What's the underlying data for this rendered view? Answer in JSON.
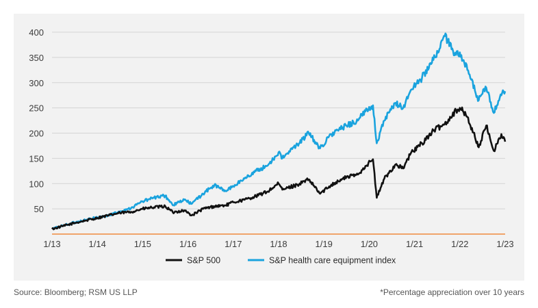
{
  "chart_data": {
    "type": "line",
    "title": "",
    "xlabel": "",
    "ylabel": "",
    "x_ticks": [
      "1/13",
      "1/14",
      "1/15",
      "1/16",
      "1/17",
      "1/18",
      "1/19",
      "1/20",
      "1/21",
      "1/22",
      "1/23"
    ],
    "y_ticks": [
      50,
      100,
      150,
      200,
      250,
      300,
      350,
      400
    ],
    "ylim": [
      0,
      400
    ],
    "xlim": [
      "2013-01",
      "2023-01"
    ],
    "grid": true,
    "legend_position": "bottom-center",
    "baseline_color": "#f08a3c",
    "series": [
      {
        "name": "S&P 500",
        "color": "#111111",
        "points": [
          [
            "2013-01",
            10
          ],
          [
            "2013-04",
            16
          ],
          [
            "2013-07",
            22
          ],
          [
            "2013-10",
            27
          ],
          [
            "2014-01",
            32
          ],
          [
            "2014-04",
            37
          ],
          [
            "2014-07",
            42
          ],
          [
            "2014-10",
            44
          ],
          [
            "2015-01",
            50
          ],
          [
            "2015-04",
            53
          ],
          [
            "2015-07",
            55
          ],
          [
            "2015-09",
            43
          ],
          [
            "2015-12",
            47
          ],
          [
            "2016-02",
            37
          ],
          [
            "2016-05",
            50
          ],
          [
            "2016-08",
            55
          ],
          [
            "2016-11",
            57
          ],
          [
            "2017-01",
            63
          ],
          [
            "2017-04",
            68
          ],
          [
            "2017-07",
            75
          ],
          [
            "2017-10",
            84
          ],
          [
            "2018-01",
            100
          ],
          [
            "2018-02",
            88
          ],
          [
            "2018-06",
            98
          ],
          [
            "2018-09",
            108
          ],
          [
            "2018-12",
            80
          ],
          [
            "2019-03",
            98
          ],
          [
            "2019-07",
            113
          ],
          [
            "2019-10",
            118
          ],
          [
            "2019-12",
            135
          ],
          [
            "2020-02",
            148
          ],
          [
            "2020-03",
            72
          ],
          [
            "2020-05",
            110
          ],
          [
            "2020-08",
            138
          ],
          [
            "2020-10",
            130
          ],
          [
            "2020-12",
            160
          ],
          [
            "2021-03",
            180
          ],
          [
            "2021-06",
            205
          ],
          [
            "2021-09",
            218
          ],
          [
            "2021-12",
            245
          ],
          [
            "2022-01",
            250
          ],
          [
            "2022-03",
            232
          ],
          [
            "2022-06",
            172
          ],
          [
            "2022-08",
            215
          ],
          [
            "2022-10",
            165
          ],
          [
            "2022-12",
            198
          ],
          [
            "2023-01",
            183
          ]
        ]
      },
      {
        "name": "S&P health care equipment index",
        "color": "#1aa3de",
        "points": [
          [
            "2013-01",
            10
          ],
          [
            "2013-04",
            17
          ],
          [
            "2013-07",
            23
          ],
          [
            "2013-10",
            28
          ],
          [
            "2014-01",
            33
          ],
          [
            "2014-04",
            37
          ],
          [
            "2014-07",
            45
          ],
          [
            "2014-10",
            52
          ],
          [
            "2015-01",
            65
          ],
          [
            "2015-04",
            72
          ],
          [
            "2015-07",
            76
          ],
          [
            "2015-09",
            57
          ],
          [
            "2015-12",
            68
          ],
          [
            "2016-02",
            60
          ],
          [
            "2016-05",
            80
          ],
          [
            "2016-08",
            97
          ],
          [
            "2016-11",
            85
          ],
          [
            "2017-01",
            95
          ],
          [
            "2017-04",
            110
          ],
          [
            "2017-07",
            125
          ],
          [
            "2017-10",
            135
          ],
          [
            "2018-01",
            162
          ],
          [
            "2018-02",
            150
          ],
          [
            "2018-06",
            178
          ],
          [
            "2018-09",
            200
          ],
          [
            "2018-12",
            170
          ],
          [
            "2019-03",
            198
          ],
          [
            "2019-07",
            215
          ],
          [
            "2019-10",
            225
          ],
          [
            "2019-12",
            243
          ],
          [
            "2020-02",
            255
          ],
          [
            "2020-03",
            180
          ],
          [
            "2020-05",
            225
          ],
          [
            "2020-08",
            260
          ],
          [
            "2020-10",
            250
          ],
          [
            "2020-12",
            285
          ],
          [
            "2021-03",
            310
          ],
          [
            "2021-06",
            345
          ],
          [
            "2021-09",
            392
          ],
          [
            "2021-12",
            355
          ],
          [
            "2022-01",
            360
          ],
          [
            "2022-03",
            325
          ],
          [
            "2022-06",
            265
          ],
          [
            "2022-08",
            290
          ],
          [
            "2022-10",
            240
          ],
          [
            "2022-12",
            275
          ],
          [
            "2023-01",
            283
          ]
        ]
      }
    ]
  },
  "footer": {
    "source": "Source: Bloomberg; RSM US LLP",
    "note": "*Percentage appreciation over 10 years"
  }
}
